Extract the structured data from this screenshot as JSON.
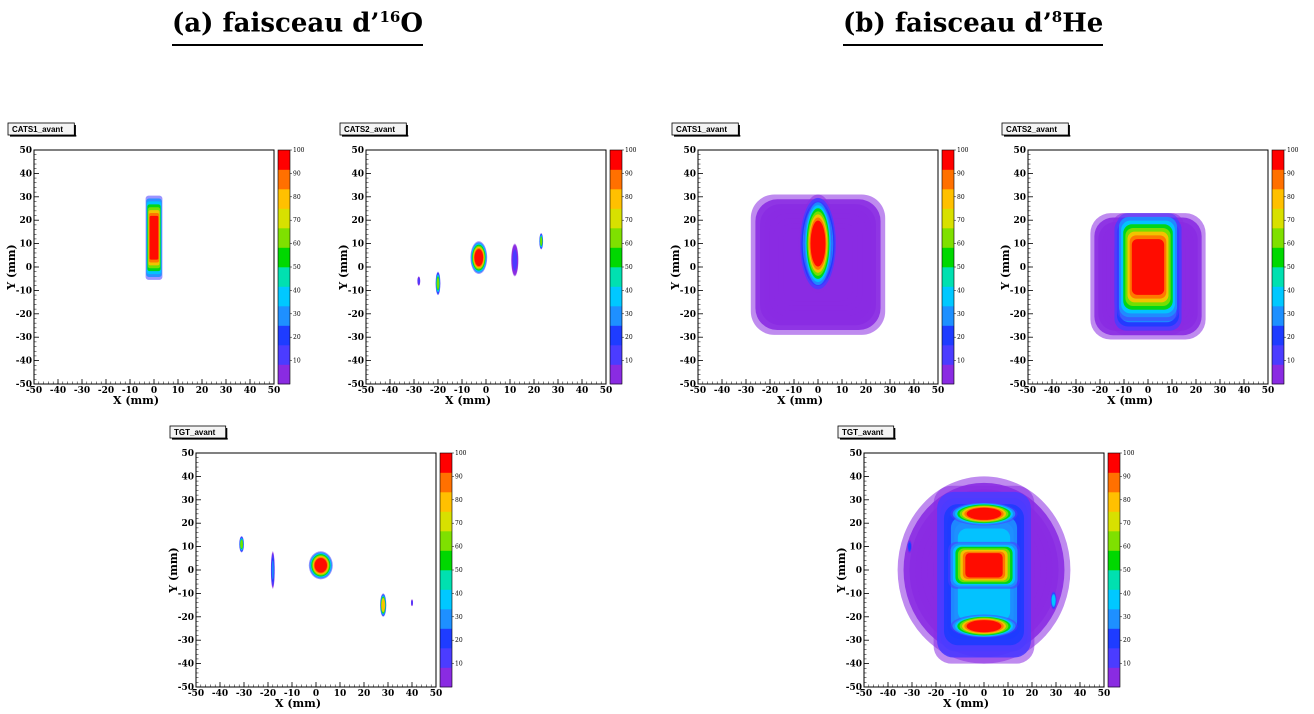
{
  "headings": [
    {
      "prefix": "(a) faisceau d’",
      "sup": "16",
      "suffix": "O"
    },
    {
      "prefix": "(b) faisceau d’",
      "sup": "8",
      "suffix": "He"
    }
  ],
  "palette": {
    "levels": [
      10,
      20,
      30,
      40,
      50,
      60,
      70,
      80,
      90,
      100
    ],
    "colors": [
      "#8a2be2",
      "#4b3cff",
      "#1e3cff",
      "#1e90ff",
      "#00c8ff",
      "#00e0b0",
      "#00d800",
      "#7fe000",
      "#d8e000",
      "#ffc000",
      "#ff7000",
      "#ff0000"
    ]
  },
  "chart_data": [
    {
      "type": "heatmap",
      "title": "CATS1_avant",
      "beam": "16O",
      "xlabel": "X (mm)",
      "ylabel": "Y (mm)",
      "xlim": [
        -50,
        50
      ],
      "ylim": [
        -50,
        50
      ],
      "ticks": [
        -50,
        -40,
        -30,
        -20,
        -10,
        0,
        10,
        20,
        30,
        40,
        50
      ],
      "zlim": [
        0,
        100
      ],
      "blobs": [
        {
          "x": 0,
          "y": 12.5,
          "sx": 3.5,
          "sy": 18,
          "peak": 100,
          "shape": "rect"
        }
      ]
    },
    {
      "type": "heatmap",
      "title": "CATS2_avant",
      "beam": "16O",
      "xlabel": "X (mm)",
      "ylabel": "Y (mm)",
      "xlim": [
        -50,
        50
      ],
      "ylim": [
        -50,
        50
      ],
      "ticks": [
        -50,
        -40,
        -30,
        -20,
        -10,
        0,
        10,
        20,
        30,
        40,
        50
      ],
      "zlim": [
        0,
        100
      ],
      "blobs": [
        {
          "x": -3,
          "y": 4,
          "sx": 3.5,
          "sy": 7,
          "peak": 100,
          "shape": "ellipse"
        },
        {
          "x": 12,
          "y": 3,
          "sx": 1.5,
          "sy": 7,
          "peak": 12,
          "shape": "ellipse"
        },
        {
          "x": 23,
          "y": 11,
          "sx": 0.8,
          "sy": 3.5,
          "peak": 60,
          "shape": "ellipse"
        },
        {
          "x": -20,
          "y": -7,
          "sx": 1,
          "sy": 5,
          "peak": 60,
          "shape": "ellipse"
        },
        {
          "x": -28,
          "y": -6,
          "sx": 0.6,
          "sy": 2,
          "peak": 15,
          "shape": "ellipse"
        }
      ]
    },
    {
      "type": "heatmap",
      "title": "CATS1_avant",
      "beam": "8He",
      "xlabel": "X (mm)",
      "ylabel": "Y (mm)",
      "xlim": [
        -50,
        50
      ],
      "ylim": [
        -50,
        50
      ],
      "ticks": [
        -50,
        -40,
        -30,
        -20,
        -10,
        0,
        10,
        20,
        30,
        40,
        50
      ],
      "zlim": [
        0,
        100
      ],
      "blobs": [
        {
          "x": 0,
          "y": 1,
          "sx": 28,
          "sy": 30,
          "peak": 8,
          "shape": "rect"
        },
        {
          "x": 0,
          "y": 10,
          "sx": 8,
          "sy": 21,
          "peak": 50,
          "shape": "ellipse"
        },
        {
          "x": 0,
          "y": 10,
          "sx": 6,
          "sy": 19,
          "peak": 100,
          "shape": "ellipse"
        }
      ]
    },
    {
      "type": "heatmap",
      "title": "CATS2_avant",
      "beam": "8He",
      "xlabel": "X (mm)",
      "ylabel": "Y (mm)",
      "xlim": [
        -50,
        50
      ],
      "ylim": [
        -50,
        50
      ],
      "ticks": [
        -50,
        -40,
        -30,
        -20,
        -10,
        0,
        10,
        20,
        30,
        40,
        50
      ],
      "zlim": [
        0,
        100
      ],
      "blobs": [
        {
          "x": 0,
          "y": -4,
          "sx": 24,
          "sy": 27,
          "peak": 10,
          "shape": "rect"
        },
        {
          "x": 0,
          "y": -3,
          "sx": 15,
          "sy": 26,
          "peak": 50,
          "shape": "rect"
        },
        {
          "x": 0,
          "y": 0,
          "sx": 13,
          "sy": 23,
          "peak": 100,
          "shape": "rect"
        }
      ]
    },
    {
      "type": "heatmap",
      "title": "TGT_avant",
      "beam": "16O",
      "xlabel": "X (mm)",
      "ylabel": "Y (mm)",
      "xlim": [
        -50,
        50
      ],
      "ylim": [
        -50,
        50
      ],
      "ticks": [
        -50,
        -40,
        -30,
        -20,
        -10,
        0,
        10,
        20,
        30,
        40,
        50
      ],
      "zlim": [
        0,
        100
      ],
      "blobs": [
        {
          "x": 2,
          "y": 2,
          "sx": 5,
          "sy": 6,
          "peak": 100,
          "shape": "ellipse"
        },
        {
          "x": -31,
          "y": 11,
          "sx": 1,
          "sy": 3.5,
          "peak": 60,
          "shape": "ellipse"
        },
        {
          "x": -18,
          "y": 0,
          "sx": 0.8,
          "sy": 8,
          "peak": 25,
          "shape": "ellipse"
        },
        {
          "x": 28,
          "y": -15,
          "sx": 1.3,
          "sy": 5,
          "peak": 80,
          "shape": "ellipse"
        },
        {
          "x": 40,
          "y": -14,
          "sx": 0.4,
          "sy": 1.5,
          "peak": 15,
          "shape": "ellipse"
        }
      ]
    },
    {
      "type": "heatmap",
      "title": "TGT_avant",
      "beam": "8He",
      "xlabel": "X (mm)",
      "ylabel": "Y (mm)",
      "xlim": [
        -50,
        50
      ],
      "ylim": [
        -50,
        50
      ],
      "ticks": [
        -50,
        -40,
        -30,
        -20,
        -10,
        0,
        10,
        20,
        30,
        40,
        50
      ],
      "zlim": [
        0,
        100
      ],
      "blobs": [
        {
          "x": 0,
          "y": 0,
          "sx": 36,
          "sy": 40,
          "peak": 6,
          "shape": "ellipse"
        },
        {
          "x": 0,
          "y": -2,
          "sx": 21,
          "sy": 38,
          "peak": 35,
          "shape": "rect"
        },
        {
          "x": 0,
          "y": 24,
          "sx": 14,
          "sy": 5,
          "peak": 100,
          "shape": "ellipse"
        },
        {
          "x": 0,
          "y": -24,
          "sx": 14,
          "sy": 5,
          "peak": 100,
          "shape": "ellipse"
        },
        {
          "x": 0,
          "y": 2,
          "sx": 15,
          "sy": 10,
          "peak": 100,
          "shape": "rect"
        },
        {
          "x": 29,
          "y": -13,
          "sx": 1.3,
          "sy": 4,
          "peak": 40,
          "shape": "ellipse"
        },
        {
          "x": -31,
          "y": 10,
          "sx": 1,
          "sy": 3,
          "peak": 20,
          "shape": "ellipse"
        }
      ]
    }
  ]
}
